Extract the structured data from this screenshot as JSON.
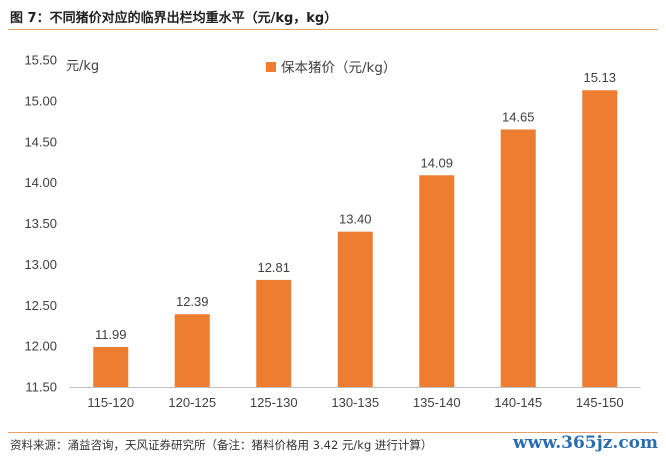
{
  "figure_title": "图 7：不同猪价对应的临界出栏均重水平（元/kg，kg）",
  "source_note": "资料来源：涌益咨询，天风证券研究所（备注：猪料价格用 3.42 元/kg 进行计算）",
  "watermark": "www.365jz.com",
  "colors": {
    "bar": "#ed7d31",
    "rule": "#e6a36a",
    "watermark": "#2a6cb0"
  },
  "chart_data": {
    "type": "bar",
    "title": "",
    "xlabel": "",
    "ylabel": "",
    "unit_label": "元/kg",
    "categories": [
      "115-120",
      "120-125",
      "125-130",
      "130-135",
      "135-140",
      "140-145",
      "145-150"
    ],
    "series": [
      {
        "name": "保本猪价（元/kg）",
        "values": [
          11.99,
          12.39,
          12.81,
          13.4,
          14.09,
          14.65,
          15.13
        ]
      }
    ],
    "data_labels": [
      "11.99",
      "12.39",
      "12.81",
      "13.40",
      "14.09",
      "14.65",
      "15.13"
    ],
    "yticks": [
      "11.50",
      "12.00",
      "12.50",
      "13.00",
      "13.50",
      "14.00",
      "14.50",
      "15.00",
      "15.50"
    ],
    "ylim": [
      11.5,
      15.5
    ],
    "grid": false,
    "legend_position": "top-center"
  }
}
